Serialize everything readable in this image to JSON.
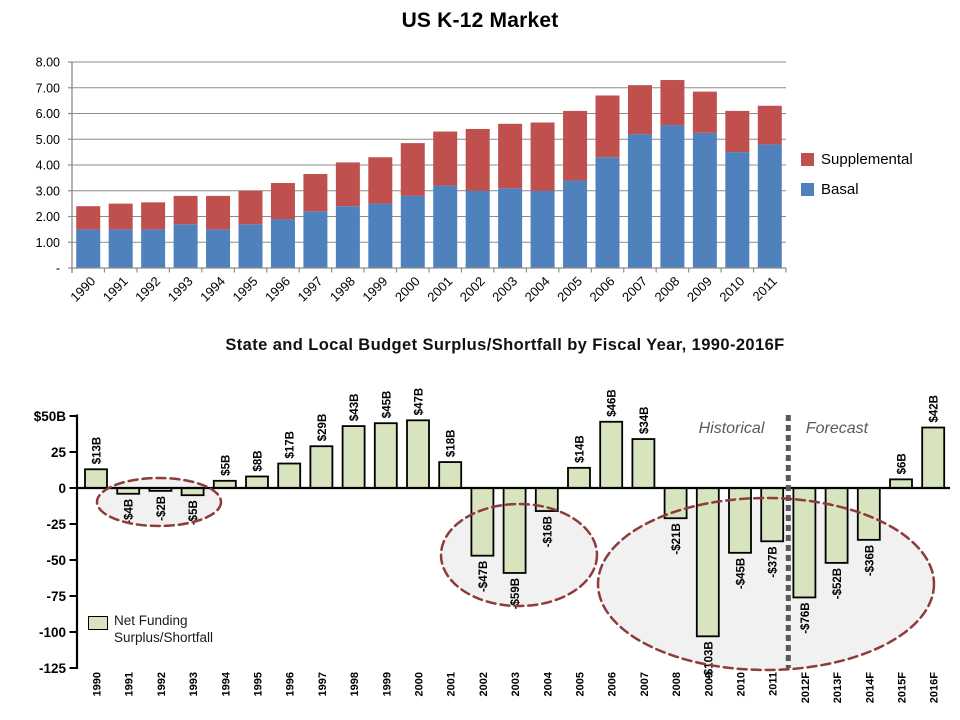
{
  "slide": {
    "background": "#ffffff"
  },
  "chart_data": [
    {
      "type": "bar",
      "stacked": true,
      "title": "US K-12 Market",
      "categories": [
        "1990",
        "1991",
        "1992",
        "1993",
        "1994",
        "1995",
        "1996",
        "1997",
        "1998",
        "1999",
        "2000",
        "2001",
        "2002",
        "2003",
        "2004",
        "2005",
        "2006",
        "2007",
        "2008",
        "2009",
        "2010",
        "2011"
      ],
      "series": [
        {
          "name": "Basal",
          "color": "#4F81BD",
          "values": [
            1.5,
            1.5,
            1.5,
            1.7,
            1.5,
            1.7,
            1.9,
            2.2,
            2.4,
            2.5,
            2.8,
            3.2,
            3.0,
            3.1,
            3.0,
            3.4,
            4.3,
            5.2,
            5.55,
            5.25,
            4.5,
            4.8
          ]
        },
        {
          "name": "Supplemental",
          "color": "#C0504D",
          "values": [
            0.9,
            1.0,
            1.05,
            1.1,
            1.3,
            1.3,
            1.4,
            1.45,
            1.7,
            1.8,
            2.05,
            2.1,
            2.4,
            2.5,
            2.65,
            2.7,
            2.4,
            1.9,
            1.75,
            1.6,
            1.6,
            1.5
          ]
        }
      ],
      "ylim": [
        0,
        8
      ],
      "ytick_values": [
        0,
        1,
        2,
        3,
        4,
        5,
        6,
        7,
        8
      ],
      "ytick_labels": [
        "-",
        "1.00",
        "2.00",
        "3.00",
        "4.00",
        "5.00",
        "6.00",
        "7.00",
        "8.00"
      ],
      "grid": true,
      "legend_position": "right",
      "legend_order": [
        "Supplemental",
        "Basal"
      ]
    },
    {
      "type": "bar",
      "title": "State and Local Budget Surplus/Shortfall by Fiscal Year, 1990-2016F",
      "categories": [
        "1990",
        "1991",
        "1992",
        "1993",
        "1994",
        "1995",
        "1996",
        "1997",
        "1998",
        "1999",
        "2000",
        "2001",
        "2002",
        "2003",
        "2004",
        "2005",
        "2006",
        "2007",
        "2008",
        "2009",
        "2010",
        "2011",
        "2012F",
        "2013F",
        "2014F",
        "2015F",
        "2016F"
      ],
      "values": [
        13,
        -4,
        -2,
        -5,
        5,
        8,
        17,
        29,
        43,
        45,
        47,
        18,
        -47,
        -59,
        -16,
        14,
        46,
        34,
        -21,
        -103,
        -45,
        -37,
        -76,
        -52,
        -36,
        6,
        42
      ],
      "bar_labels": [
        "$13B",
        "-$4B",
        "-$2B",
        "-$5B",
        "$5B",
        "$8B",
        "$17B",
        "$29B",
        "$43B",
        "$45B",
        "$47B",
        "$18B",
        "-$47B",
        "-$59B",
        "-$16B",
        "$14B",
        "$46B",
        "$34B",
        "-$21B",
        "-$103B",
        "-$45B",
        "-$37B",
        "-$76B",
        "-$52B",
        "-$36B",
        "$6B",
        "$42B"
      ],
      "bar_color": "#D7E4BD",
      "bar_border_color": "#000000",
      "ylim": [
        -125,
        50
      ],
      "ytick_values": [
        50,
        25,
        0,
        -25,
        -50,
        -75,
        -100,
        -125
      ],
      "ytick_labels": [
        "$50B",
        "25",
        "0",
        "-25",
        "-50",
        "-75",
        "-100",
        "-125"
      ],
      "grid": false,
      "legend": {
        "line1": "Net Funding",
        "line2": "Surplus/Shortfall"
      },
      "annotations": {
        "historical_label": "Historical",
        "forecast_label": "Forecast",
        "divider_after_category": "2011",
        "circled_groups": [
          [
            "1991",
            "1992",
            "1993"
          ],
          [
            "2002",
            "2003",
            "2004"
          ],
          [
            "2008",
            "2009",
            "2010",
            "2011",
            "2012F",
            "2013F",
            "2014F"
          ]
        ],
        "ellipse_color": "#8E3B3B",
        "ellipse_fill": "#F1F1F1"
      }
    }
  ]
}
